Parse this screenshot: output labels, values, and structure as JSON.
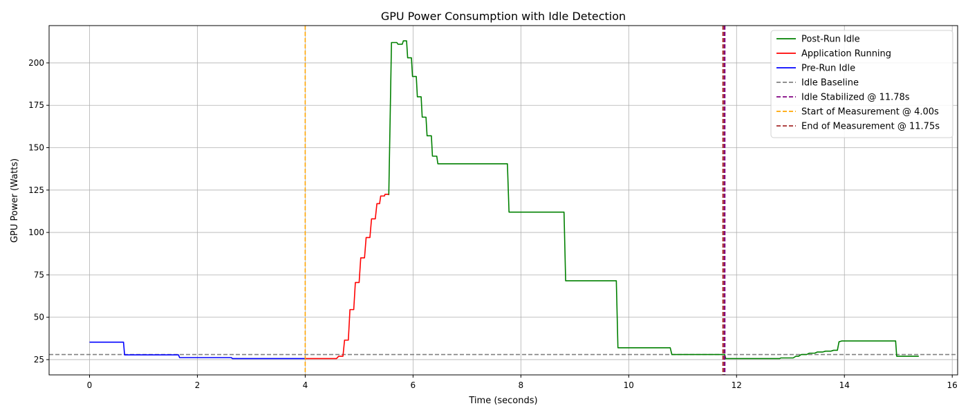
{
  "chart_data": {
    "type": "line",
    "title": "GPU Power Consumption with Idle Detection",
    "xlabel": "Time (seconds)",
    "ylabel": "GPU Power (Watts)",
    "xlim": [
      -0.75,
      16.1
    ],
    "ylim": [
      16,
      222
    ],
    "xticks": [
      0,
      2,
      4,
      6,
      8,
      10,
      12,
      14,
      16
    ],
    "yticks": [
      25,
      50,
      75,
      100,
      125,
      150,
      175,
      200
    ],
    "grid": true,
    "legend_position": "top-right",
    "series": [
      {
        "name": "Post-Run Idle",
        "color": "#008000",
        "style": "solid",
        "points": [
          [
            5.55,
            122
          ],
          [
            5.6,
            212
          ],
          [
            5.7,
            212
          ],
          [
            5.72,
            211
          ],
          [
            5.8,
            211
          ],
          [
            5.82,
            213
          ],
          [
            5.88,
            213
          ],
          [
            5.9,
            203
          ],
          [
            5.97,
            203
          ],
          [
            5.99,
            192
          ],
          [
            6.06,
            192
          ],
          [
            6.08,
            180
          ],
          [
            6.15,
            180
          ],
          [
            6.17,
            168
          ],
          [
            6.24,
            168
          ],
          [
            6.26,
            157
          ],
          [
            6.34,
            157
          ],
          [
            6.36,
            145
          ],
          [
            6.44,
            145
          ],
          [
            6.46,
            140.5
          ],
          [
            7.75,
            140.5
          ],
          [
            7.78,
            112
          ],
          [
            8.8,
            112
          ],
          [
            8.83,
            71.5
          ],
          [
            9.77,
            71.5
          ],
          [
            9.8,
            32
          ],
          [
            10.77,
            32
          ],
          [
            10.8,
            28
          ],
          [
            11.78,
            28
          ],
          [
            11.8,
            25.6
          ],
          [
            12.8,
            25.6
          ],
          [
            12.82,
            26
          ],
          [
            13.05,
            26
          ],
          [
            13.1,
            27
          ],
          [
            13.15,
            27
          ],
          [
            13.2,
            28
          ],
          [
            13.3,
            28
          ],
          [
            13.35,
            28.8
          ],
          [
            13.45,
            28.8
          ],
          [
            13.5,
            29.5
          ],
          [
            13.6,
            29.5
          ],
          [
            13.65,
            30
          ],
          [
            13.75,
            30
          ],
          [
            13.8,
            30.5
          ],
          [
            13.87,
            30.5
          ],
          [
            13.9,
            35.5
          ],
          [
            13.95,
            36
          ],
          [
            14.95,
            36
          ],
          [
            14.97,
            27
          ],
          [
            15.38,
            27
          ]
        ]
      },
      {
        "name": "Application Running",
        "color": "#ff0000",
        "style": "solid",
        "points": [
          [
            4.0,
            25.6
          ],
          [
            4.58,
            25.6
          ],
          [
            4.62,
            27
          ],
          [
            4.7,
            27
          ],
          [
            4.73,
            36.5
          ],
          [
            4.8,
            36.5
          ],
          [
            4.83,
            54.5
          ],
          [
            4.9,
            54.5
          ],
          [
            4.93,
            70.5
          ],
          [
            5.0,
            70.5
          ],
          [
            5.03,
            85
          ],
          [
            5.1,
            85
          ],
          [
            5.13,
            97
          ],
          [
            5.2,
            97
          ],
          [
            5.23,
            108
          ],
          [
            5.3,
            108
          ],
          [
            5.33,
            117
          ],
          [
            5.38,
            117
          ],
          [
            5.4,
            121.5
          ],
          [
            5.47,
            121.5
          ],
          [
            5.48,
            122.5
          ],
          [
            5.55,
            122.5
          ]
        ]
      },
      {
        "name": "Pre-Run Idle",
        "color": "#0000ff",
        "style": "solid",
        "points": [
          [
            0,
            35.3
          ],
          [
            0.63,
            35.3
          ],
          [
            0.65,
            27.8
          ],
          [
            1.65,
            27.8
          ],
          [
            1.67,
            26.2
          ],
          [
            2.63,
            26.2
          ],
          [
            2.65,
            25.6
          ],
          [
            4.0,
            25.6
          ]
        ]
      }
    ],
    "reference_lines": [
      {
        "name": "Idle Baseline",
        "orientation": "horizontal",
        "value": 28,
        "color": "#808080",
        "width": 1.6
      },
      {
        "name": "Idle Stabilized @ 11.78s",
        "orientation": "vertical",
        "value": 11.78,
        "color": "#800080",
        "width": 2.2
      },
      {
        "name": "Start of Measurement @ 4.00s",
        "orientation": "vertical",
        "value": 4.0,
        "color": "#ffa500",
        "width": 1.6
      },
      {
        "name": "End of Measurement @ 11.75s",
        "orientation": "vertical",
        "value": 11.75,
        "color": "#a52a2a",
        "width": 2.2
      }
    ]
  }
}
